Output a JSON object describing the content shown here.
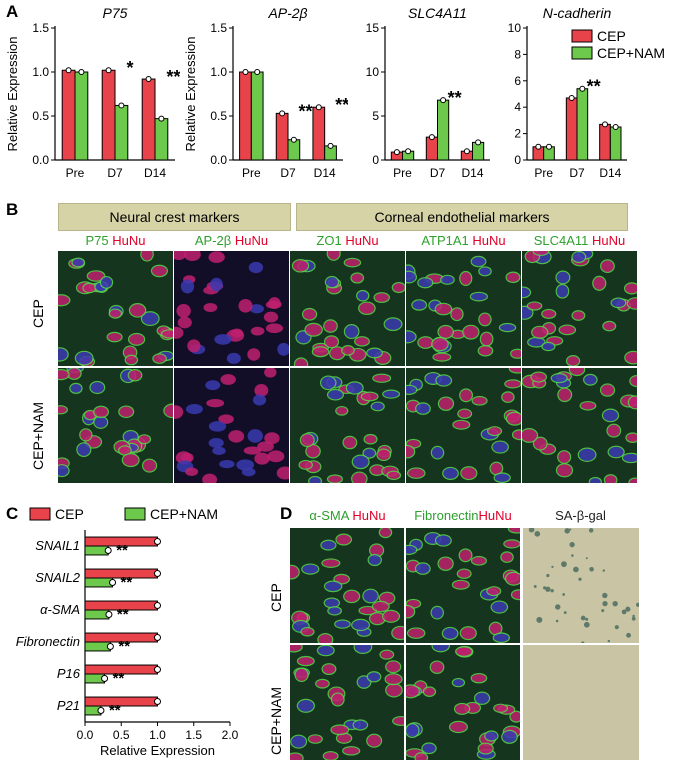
{
  "figure": {
    "panel_labels": [
      "A",
      "B",
      "C",
      "D"
    ],
    "colors": {
      "cep": "#e8434b",
      "cep_nam": "#6cc94b",
      "stain_green": "#2ea02e",
      "stain_red": "#e0002a",
      "banner": "#d6d3a6"
    },
    "panel_B": {
      "banner_left": "Neural crest markers",
      "banner_right": "Corneal endothelial markers",
      "columns": [
        {
          "green": "P75",
          "red": "HuNu"
        },
        {
          "green": "AP-2β",
          "red": "HuNu"
        },
        {
          "green": "ZO1",
          "red": "HuNu"
        },
        {
          "green": "ATP1A1",
          "red": "HuNu"
        },
        {
          "green": "SLC4A11",
          "red": "HuNu"
        }
      ],
      "rows": [
        "CEP",
        "CEP+NAM"
      ]
    },
    "panel_D": {
      "columns": [
        {
          "green": "α-SMA",
          "red": "HuNu"
        },
        {
          "green": "Fibronectin",
          "red": "HuNu"
        },
        {
          "plain": "SA-β-gal"
        }
      ],
      "rows": [
        "CEP",
        "CEP+NAM"
      ]
    }
  },
  "chart_data": [
    {
      "type": "bar",
      "title": "P75",
      "ylabel": "Relative Expression",
      "categories": [
        "Pre",
        "D7",
        "D14"
      ],
      "ylim": [
        0,
        1.5
      ],
      "yticks": [
        "0.0",
        "0.5",
        "1.0",
        "1.5"
      ],
      "series": [
        {
          "name": "CEP",
          "values": [
            1.02,
            1.02,
            0.92
          ]
        },
        {
          "name": "CEP+NAM",
          "values": [
            1.0,
            0.62,
            0.47
          ]
        }
      ],
      "annotations": [
        {
          "category": "D7",
          "text": "*"
        },
        {
          "category": "D14",
          "text": "**"
        }
      ]
    },
    {
      "type": "bar",
      "title": "AP-2β",
      "ylabel": "Relative Expression",
      "categories": [
        "Pre",
        "D7",
        "D14"
      ],
      "ylim": [
        0,
        1.5
      ],
      "yticks": [
        "0.0",
        "0.5",
        "1.0",
        "1.5"
      ],
      "series": [
        {
          "name": "CEP",
          "values": [
            1.0,
            0.53,
            0.6
          ]
        },
        {
          "name": "CEP+NAM",
          "values": [
            1.0,
            0.23,
            0.16
          ]
        }
      ],
      "annotations": [
        {
          "category": "D7",
          "text": "**"
        },
        {
          "category": "D14",
          "text": "**"
        }
      ]
    },
    {
      "type": "bar",
      "title": "SLC4A11",
      "ylabel": "",
      "categories": [
        "Pre",
        "D7",
        "D14"
      ],
      "ylim": [
        0,
        15
      ],
      "yticks": [
        "0",
        "5",
        "10",
        "15"
      ],
      "series": [
        {
          "name": "CEP",
          "values": [
            0.9,
            2.6,
            1.0
          ]
        },
        {
          "name": "CEP+NAM",
          "values": [
            1.0,
            6.8,
            2.0
          ]
        }
      ],
      "annotations": [
        {
          "category": "D7",
          "text": "**"
        }
      ]
    },
    {
      "type": "bar",
      "title": "N-cadherin",
      "ylabel": "",
      "categories": [
        "Pre",
        "D7",
        "D14"
      ],
      "ylim": [
        0,
        10
      ],
      "yticks": [
        "0",
        "2",
        "4",
        "6",
        "8",
        "10"
      ],
      "series": [
        {
          "name": "CEP",
          "values": [
            1.0,
            4.7,
            2.7
          ]
        },
        {
          "name": "CEP+NAM",
          "values": [
            1.0,
            5.4,
            2.5
          ]
        }
      ],
      "annotations": [
        {
          "category": "D7",
          "text": "**"
        }
      ],
      "legend": [
        "CEP",
        "CEP+NAM"
      ],
      "legend_position": "top-right"
    },
    {
      "type": "bar",
      "orientation": "horizontal",
      "xlabel": "Relative Expression",
      "categories": [
        "SNAIL1",
        "SNAIL2",
        "α-SMA",
        "Fibronectin",
        "P16",
        "P21"
      ],
      "xlim": [
        0,
        2
      ],
      "xticks": [
        "0.0",
        "0.5",
        "1.0",
        "1.5",
        "2.0"
      ],
      "series": [
        {
          "name": "CEP",
          "values": [
            1.0,
            1.0,
            1.0,
            1.0,
            1.0,
            1.0
          ]
        },
        {
          "name": "CEP+NAM",
          "values": [
            0.32,
            0.38,
            0.33,
            0.35,
            0.27,
            0.22
          ]
        }
      ],
      "annotations": [
        "**",
        "**",
        "**",
        "**",
        "**",
        "**"
      ],
      "legend": [
        "CEP",
        "CEP+NAM"
      ],
      "legend_position": "top"
    }
  ]
}
